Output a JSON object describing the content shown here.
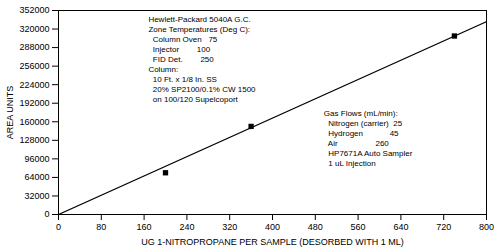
{
  "chart_data": {
    "type": "scatter",
    "xlabel": "UG 1-NITROPROPANE PER SAMPLE (DESORBED WITH 1 ML)",
    "ylabel": "AREA UNITS",
    "xlim": [
      0,
      800
    ],
    "ylim": [
      0,
      352000
    ],
    "xticks": [
      0,
      80,
      160,
      240,
      320,
      400,
      480,
      560,
      640,
      720,
      800
    ],
    "yticks": [
      0,
      32000,
      64000,
      96000,
      128000,
      160000,
      192000,
      224000,
      256000,
      288000,
      320000,
      352000
    ],
    "series": [
      {
        "type": "line",
        "color": "#000000",
        "line_style": "solid",
        "x": [
          0,
          800
        ],
        "values": [
          0,
          332800
        ]
      },
      {
        "type": "scatter",
        "color": "#000000",
        "marker": "square",
        "x": [
          200,
          360,
          740
        ],
        "values": [
          72000,
          152000,
          308000
        ]
      }
    ],
    "annotations": [
      [
        "Hewlett-Packard 5040A G.C.",
        "Zone Temperatures (Deg C):",
        "  Column Oven   75",
        "  Injector        100",
        "  FID Det.        250",
        "Column:",
        "  10 Ft. x 1/8 In. SS",
        "  20% SP2100/0.1% CW 1500",
        "  on 100/120 Supelcoport"
      ],
      [
        "Gas Flows (mL/min):",
        "  Nitrogen (carrier)  25",
        "  Hydrogen            45",
        "  Air                 260",
        "  HP7671A Auto Sampler",
        "  1 uL Injection"
      ]
    ]
  }
}
